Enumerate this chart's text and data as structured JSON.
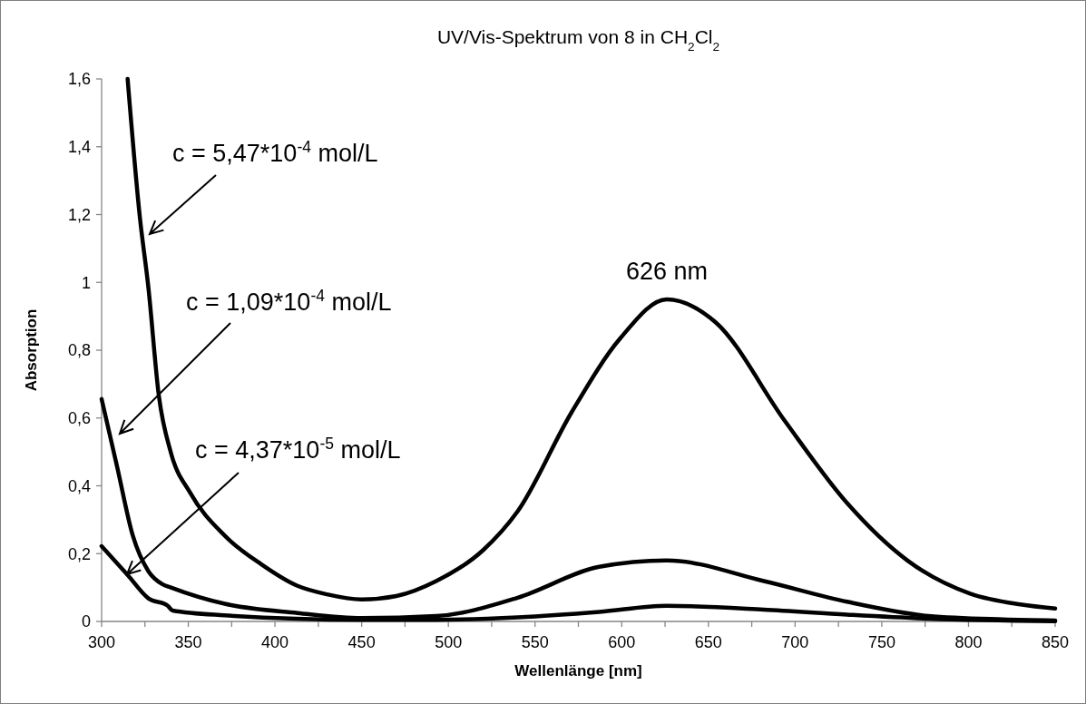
{
  "chart_data": {
    "type": "line",
    "title": "UV/Vis-Spektrum von 8 in CH$_{2}$Cl$_{2}$",
    "xlabel": "Wellenlänge [nm]",
    "ylabel": "Absorption",
    "xlim": [
      300,
      850
    ],
    "ylim": [
      0,
      1.6
    ],
    "xticks": [
      300,
      {
        "value": 325,
        "label": null
      },
      350,
      {
        "value": 375,
        "label": null
      },
      400,
      {
        "value": 425,
        "label": null
      },
      450,
      {
        "value": 475,
        "label": null
      },
      500,
      {
        "value": 525,
        "label": null
      },
      550,
      {
        "value": 575,
        "label": null
      },
      600,
      {
        "value": 625,
        "label": null
      },
      650,
      {
        "value": 675,
        "label": null
      },
      700,
      {
        "value": 725,
        "label": null
      },
      750,
      {
        "value": 775,
        "label": null
      },
      800,
      {
        "value": 825,
        "label": null
      },
      850
    ],
    "yticks": [
      0,
      {
        "value": 0.2,
        "label": "0,2"
      },
      {
        "value": 0.4,
        "label": "0,4"
      },
      {
        "value": 0.6,
        "label": "0,6"
      },
      {
        "value": 0.8,
        "label": "0,8"
      },
      1,
      {
        "value": 1.2,
        "label": "1,2"
      },
      {
        "value": 1.4,
        "label": "1,4"
      },
      {
        "value": 1.6,
        "label": "1,6"
      }
    ],
    "grid": false,
    "marker": "none",
    "line_style": "solid",
    "annotations": [
      {
        "text": "626 nm",
        "x": 626,
        "y": 0.95
      }
    ],
    "series": [
      {
        "name": "c = 5,47*10$^{-4}$ mol/L",
        "color": "#000000",
        "x": [
          315,
          322,
          327,
          333,
          340,
          351,
          371,
          392,
          413,
          430,
          450,
          470,
          493,
          520,
          540,
          571,
          599,
          626,
          654,
          694,
          730,
          765,
          801,
          830,
          850
        ],
        "values": [
          1.6,
          1.195,
          0.984,
          0.666,
          0.497,
          0.38,
          0.253,
          0.169,
          0.105,
          0.08,
          0.065,
          0.075,
          0.119,
          0.21,
          0.325,
          0.616,
          0.834,
          0.95,
          0.883,
          0.592,
          0.349,
          0.179,
          0.082,
          0.05,
          0.038
        ]
      },
      {
        "name": "c = 1,09*10$^{-4}$ mol/L",
        "color": "#000000",
        "x": [
          300,
          309,
          318,
          327,
          335,
          340,
          371,
          413,
          450,
          493,
          540,
          587,
          626,
          682,
          730,
          777,
          820,
          850
        ],
        "values": [
          0.656,
          0.455,
          0.253,
          0.148,
          0.11,
          0.1,
          0.052,
          0.025,
          0.01,
          0.016,
          0.07,
          0.161,
          0.18,
          0.119,
          0.058,
          0.016,
          0.006,
          0.003
        ]
      },
      {
        "name": "c = 4,37*10$^{-5}$ mol/L",
        "color": "#000000",
        "x": [
          300,
          315,
          327,
          338,
          341,
          371,
          450,
          493,
          540,
          587,
          626,
          682,
          730,
          777,
          850
        ],
        "values": [
          0.222,
          0.137,
          0.068,
          0.047,
          0.032,
          0.018,
          0.005,
          0.005,
          0.012,
          0.028,
          0.046,
          0.035,
          0.02,
          0.008,
          0.001
        ]
      }
    ]
  }
}
